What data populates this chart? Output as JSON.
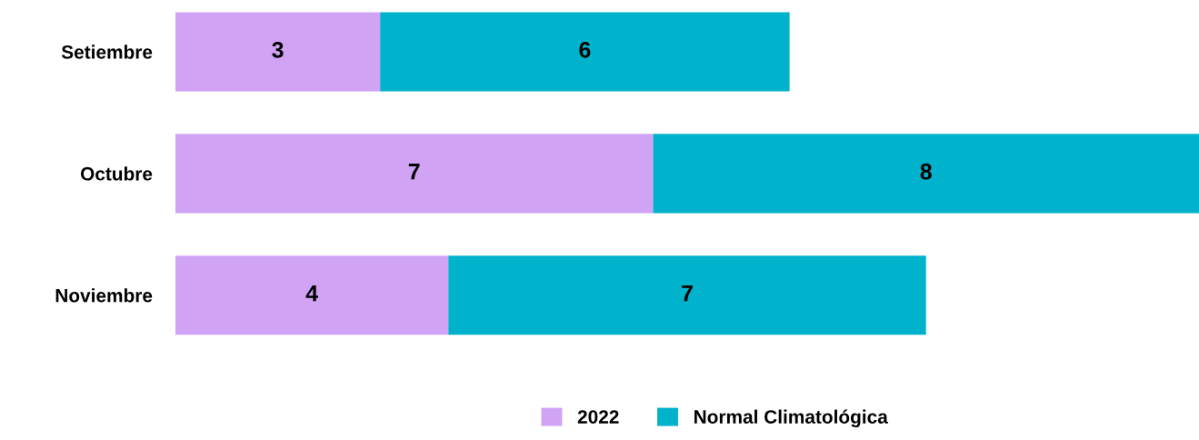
{
  "chart_data": {
    "type": "bar",
    "orientation": "horizontal",
    "stacked": true,
    "data_labels": true,
    "legend": "bottom",
    "grid": false,
    "categories": [
      "Setiembre",
      "Octubre",
      "Noviembre"
    ],
    "series": [
      {
        "name": "2022",
        "color": "#d0a3f5",
        "values": [
          3,
          7,
          4
        ]
      },
      {
        "name": "Normal Climatológica",
        "color": "#00b2cc",
        "values": [
          6,
          8,
          7
        ]
      }
    ]
  }
}
